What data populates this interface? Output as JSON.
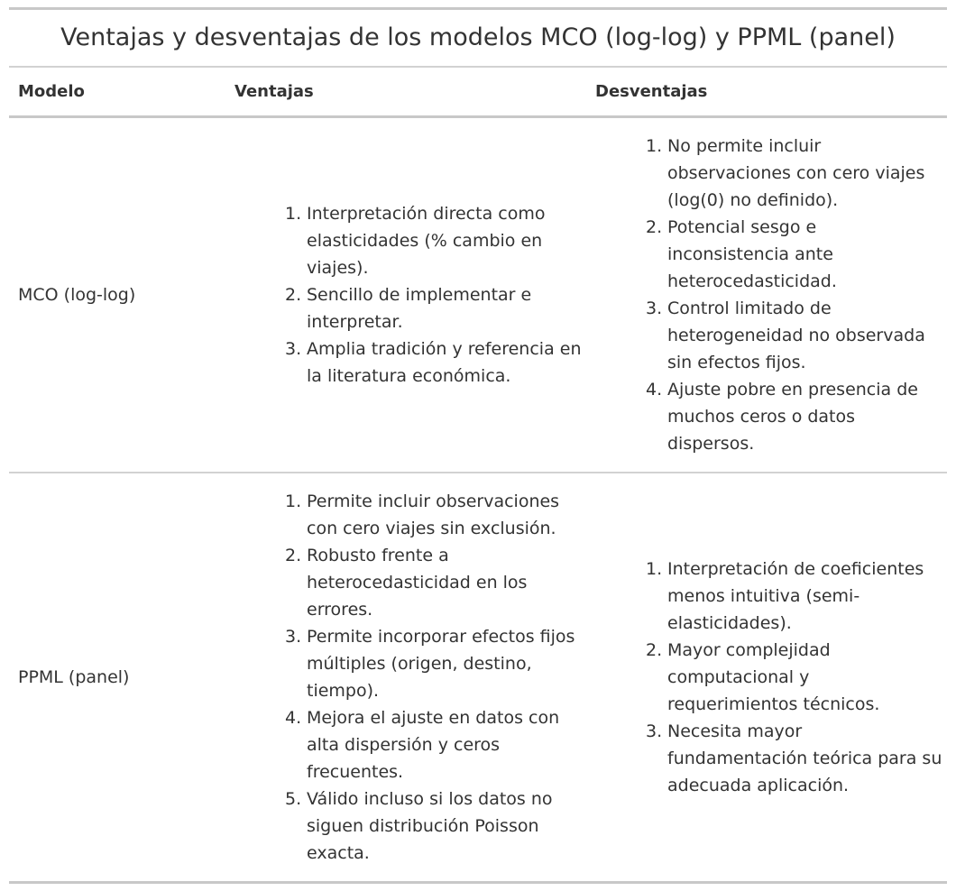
{
  "table": {
    "title": "Ventajas y desventajas de los modelos MCO (log-log) y PPML (panel)",
    "headers": {
      "modelo": "Modelo",
      "ventajas": "Ventajas",
      "desventajas": "Desventajas"
    },
    "rows": [
      {
        "modelo": "MCO (log-log)",
        "ventajas": [
          {
            "num": "1.",
            "text": "Interpretación directa como elasticidades (% cambio en viajes)."
          },
          {
            "num": "2.",
            "text": "Sencillo de implementar e interpretar."
          },
          {
            "num": "3.",
            "text": "Amplia tradición y referencia en la literatura económica."
          }
        ],
        "desventajas": [
          {
            "num": "1.",
            "text": "No permite incluir observaciones con cero viajes (log(0) no definido)."
          },
          {
            "num": "2.",
            "text": "Potencial sesgo e inconsistencia ante heterocedasticidad."
          },
          {
            "num": "3.",
            "text": "Control limitado de heterogeneidad no observada sin efectos fijos."
          },
          {
            "num": "4.",
            "text": "Ajuste pobre en presencia de muchos ceros o datos dispersos."
          }
        ]
      },
      {
        "modelo": "PPML (panel)",
        "ventajas": [
          {
            "num": "1.",
            "text": "Permite incluir observaciones con cero viajes sin exclusión."
          },
          {
            "num": "2.",
            "text": "Robusto frente a heterocedasticidad en los errores."
          },
          {
            "num": "3.",
            "text": "Permite incorporar efectos fijos múltiples (origen, destino, tiempo)."
          },
          {
            "num": "4.",
            "text": "Mejora el ajuste en datos con alta dispersión y ceros frecuentes."
          },
          {
            "num": "5.",
            "text": "Válido incluso si los datos no siguen distribución Poisson exacta."
          }
        ],
        "desventajas": [
          {
            "num": "1.",
            "text": "Interpretación de coeficientes menos intuitiva (semi-elasticidades)."
          },
          {
            "num": "2.",
            "text": "Mayor complejidad computacional y requerimientos técnicos."
          },
          {
            "num": "3.",
            "text": "Necesita mayor fundamentación teórica para su adecuada aplicación."
          }
        ]
      }
    ]
  }
}
